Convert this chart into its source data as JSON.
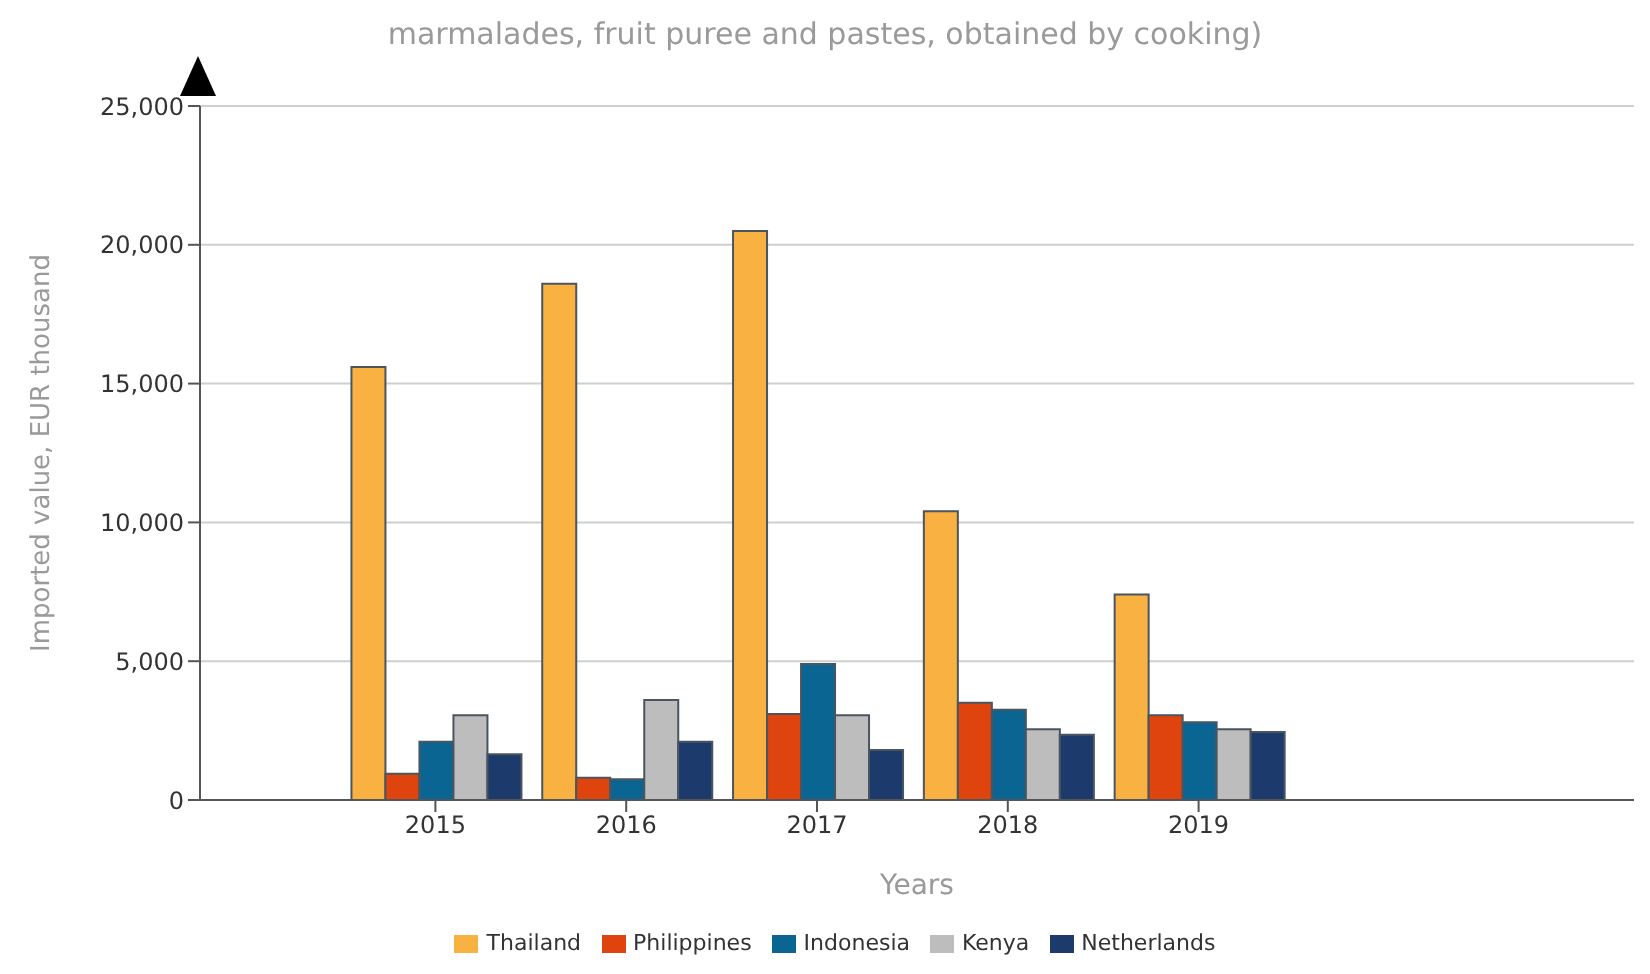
{
  "chart_data": {
    "type": "bar",
    "title": "marmalades, fruit puree and pastes, obtained by cooking)",
    "xlabel": "Years",
    "ylabel": "Imported value, EUR thousand",
    "categories": [
      "2015",
      "2016",
      "2017",
      "2018",
      "2019"
    ],
    "series": [
      {
        "name": "Thailand",
        "color": "#f9b242",
        "values": [
          15600,
          18600,
          20500,
          10400,
          7400
        ]
      },
      {
        "name": "Philippines",
        "color": "#e0440e",
        "values": [
          950,
          800,
          3100,
          3500,
          3050
        ]
      },
      {
        "name": "Indonesia",
        "color": "#0b6593",
        "values": [
          2100,
          750,
          4900,
          3250,
          2800
        ]
      },
      {
        "name": "Kenya",
        "color": "#bdbdbd",
        "values": [
          3050,
          3600,
          3050,
          2550,
          2550
        ]
      },
      {
        "name": "Netherlands",
        "color": "#1c3a6b",
        "values": [
          1650,
          2100,
          1800,
          2350,
          2450
        ]
      }
    ],
    "ylim": [
      0,
      25000
    ],
    "yticks": [
      {
        "value": 0,
        "label": "0"
      },
      {
        "value": 5000,
        "label": "5,000"
      },
      {
        "value": 10000,
        "label": "10,000"
      },
      {
        "value": 15000,
        "label": "15,000"
      },
      {
        "value": 20000,
        "label": "20,000"
      },
      {
        "value": 25000,
        "label": "25,000"
      }
    ],
    "grid": "y",
    "legend": "bottom"
  }
}
